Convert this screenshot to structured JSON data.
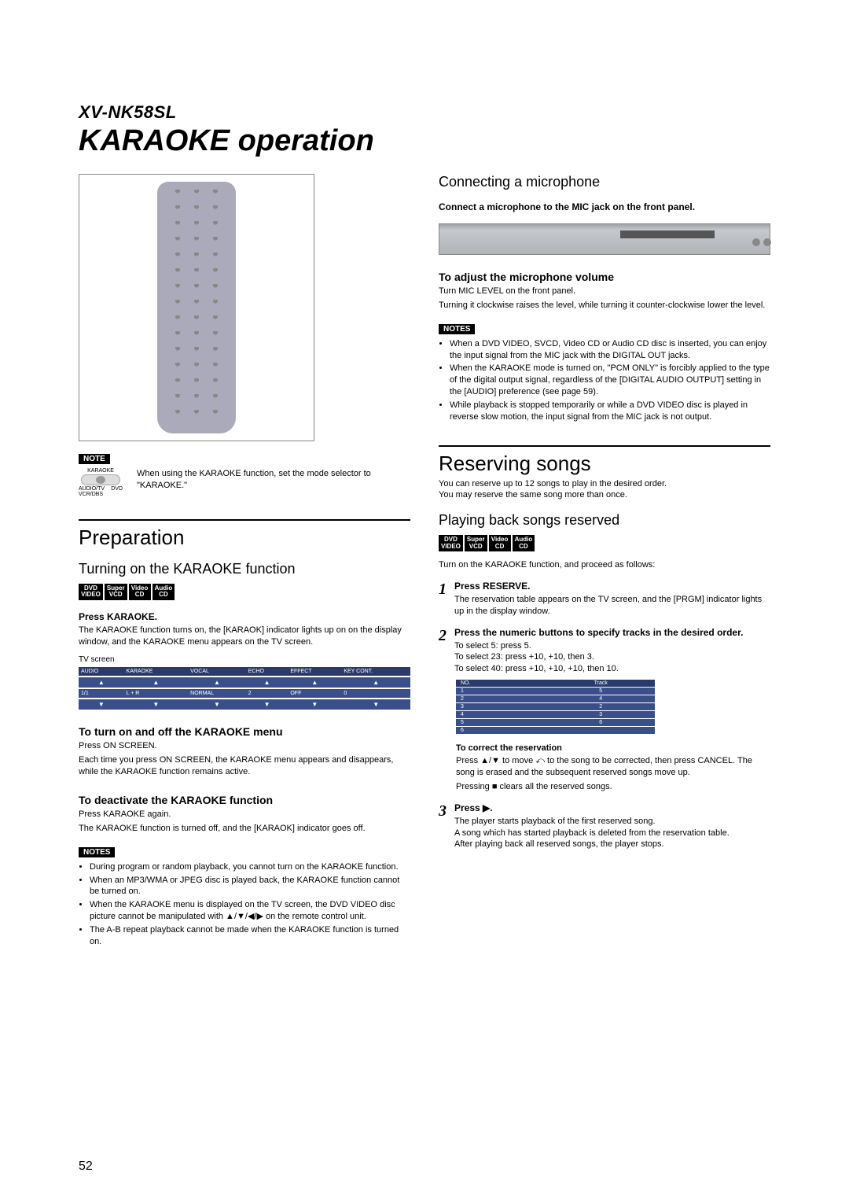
{
  "model": "XV-NK58SL",
  "title": "KARAOKE operation",
  "page_number": "52",
  "remote_note": {
    "badge": "NOTE",
    "selector_top": "KARAOKE",
    "selector_left": "AUDIO/TV\nVCR/DBS",
    "selector_right": "DVD",
    "text": "When using the KARAOKE function, set the mode selector to \"KARAOKE.\""
  },
  "left": {
    "preparation_title": "Preparation",
    "turn_on_title": "Turning on the KARAOKE function",
    "disc_badges": [
      "DVD VIDEO",
      "Super VCD",
      "Video CD",
      "Audio CD"
    ],
    "press_karaoke": "Press KARAOKE.",
    "press_karaoke_body": "The KARAOKE function turns on, the [KARAOK] indicator lights up on on the display window, and the KARAOKE menu appears on the TV screen.",
    "tv_caption": "TV screen",
    "tv_headers": [
      "AUDIO",
      "KARAOKE",
      "VOCAL",
      "ECHO",
      "EFFECT",
      "KEY CONT."
    ],
    "tv_values": [
      "1/1",
      "L + R",
      "NORMAL",
      "2",
      "OFF",
      "0"
    ],
    "turn_menu_title": "To turn on and off the KARAOKE menu",
    "turn_menu_body1": "Press ON SCREEN.",
    "turn_menu_body2": "Each time you press ON SCREEN, the KARAOKE menu appears and disappears, while the KARAOKE function remains active.",
    "deactivate_title": "To deactivate the KARAOKE function",
    "deactivate_body1": "Press KARAOKE again.",
    "deactivate_body2": "The KARAOKE function is turned off, and the [KARAOK] indicator goes off.",
    "notes_badge": "NOTES",
    "notes": [
      "During program or random playback, you cannot turn on the KARAOKE function.",
      "When an MP3/WMA or JPEG disc is played back, the KARAOKE function cannot be turned on.",
      "When the KARAOKE menu is displayed on the TV screen, the DVD VIDEO disc picture cannot be manipulated with ▲/▼/◀/▶ on the remote control unit.",
      "The A-B repeat playback cannot be made when the KARAOKE function is turned on."
    ]
  },
  "right": {
    "connect_title": "Connecting a microphone",
    "connect_body": "Connect a microphone to the MIC jack on the front panel.",
    "adjust_title": "To adjust the microphone volume",
    "adjust_body1": "Turn MIC LEVEL on the front panel.",
    "adjust_body2": "Turning it clockwise raises the level, while turning it counter-clockwise lower the level.",
    "notes_badge": "NOTES",
    "notes": [
      "When a DVD VIDEO, SVCD, Video CD or Audio CD disc is inserted, you can enjoy the input signal from the MIC jack with the DIGITAL OUT jacks.",
      "When the KARAOKE mode is turned on, \"PCM ONLY\" is forcibly applied to the type of the digital output signal, regardless of the [DIGITAL AUDIO OUTPUT] setting in the [AUDIO] preference (see page 59).",
      "While playback is stopped temporarily or while a DVD VIDEO disc is played in reverse slow motion, the input signal from the MIC jack is not output."
    ],
    "reserve_title": "Reserving songs",
    "reserve_body1": "You can reserve up to 12 songs to play in the desired order.",
    "reserve_body2": "You may reserve the same song more than once.",
    "playback_title": "Playing back songs reserved",
    "disc_badges": [
      "DVD VIDEO",
      "Super VCD",
      "Video CD",
      "Audio CD"
    ],
    "playback_body": "Turn on the KARAOKE function, and proceed as follows:",
    "steps": [
      {
        "num": "1",
        "title": "Press RESERVE.",
        "desc": "The reservation table appears on the TV screen, and the [PRGM] indicator lights up in the display window."
      },
      {
        "num": "2",
        "title": "Press the numeric buttons to specify tracks in the desired order.",
        "desc_lines": [
          "To select 5: press 5.",
          "To select 23: press +10, +10, then 3.",
          "To select 40: press +10, +10, +10, then 10."
        ],
        "table_headers": [
          "NO.",
          "Track"
        ],
        "table_rows": [
          [
            "1",
            "5"
          ],
          [
            "2",
            "4"
          ],
          [
            "3",
            "2"
          ],
          [
            "4",
            "3"
          ],
          [
            "5",
            "6"
          ],
          [
            "6",
            ""
          ]
        ],
        "correct_title": "To correct the reservation",
        "correct_body1": "Press ▲/▼ to move ⤺ to the song to be corrected, then press CANCEL. The song is erased and the subsequent reserved songs move up.",
        "correct_body2": "Pressing ■ clears all the reserved songs."
      },
      {
        "num": "3",
        "title": "Press ▶.",
        "desc_lines": [
          "The player starts playback of the first reserved song.",
          "A song which has started playback is deleted from the reservation table.",
          "After playing back all reserved songs, the player stops."
        ]
      }
    ]
  }
}
